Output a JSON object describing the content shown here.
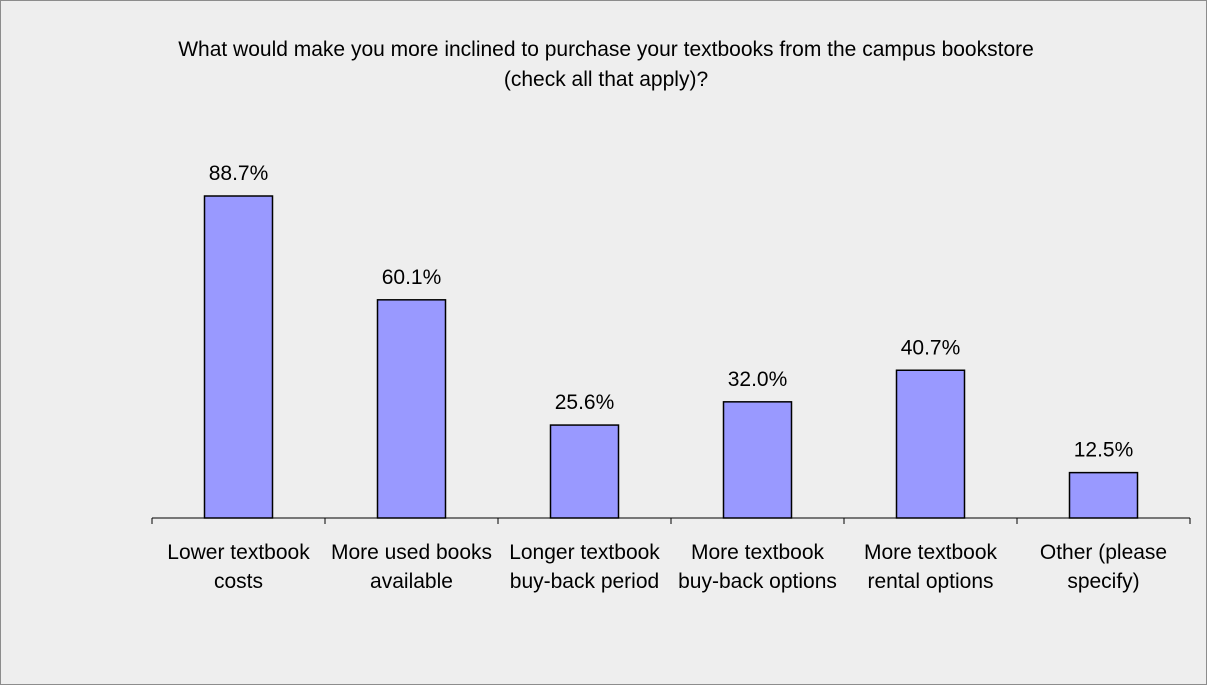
{
  "chart_data": {
    "type": "bar",
    "title": "What would make you more inclined to purchase your textbooks from the campus bookstore (check all that apply)?",
    "categories": [
      "Lower textbook costs",
      "More used books available",
      "Longer textbook buy-back period",
      "More textbook buy-back options",
      "More textbook rental options",
      "Other (please specify)"
    ],
    "values": [
      88.7,
      60.1,
      25.6,
      32.0,
      40.7,
      12.5
    ],
    "value_labels": [
      "88.7%",
      "60.1%",
      "25.6%",
      "32.0%",
      "40.7%",
      "12.5%"
    ],
    "color": "#9999ff"
  }
}
